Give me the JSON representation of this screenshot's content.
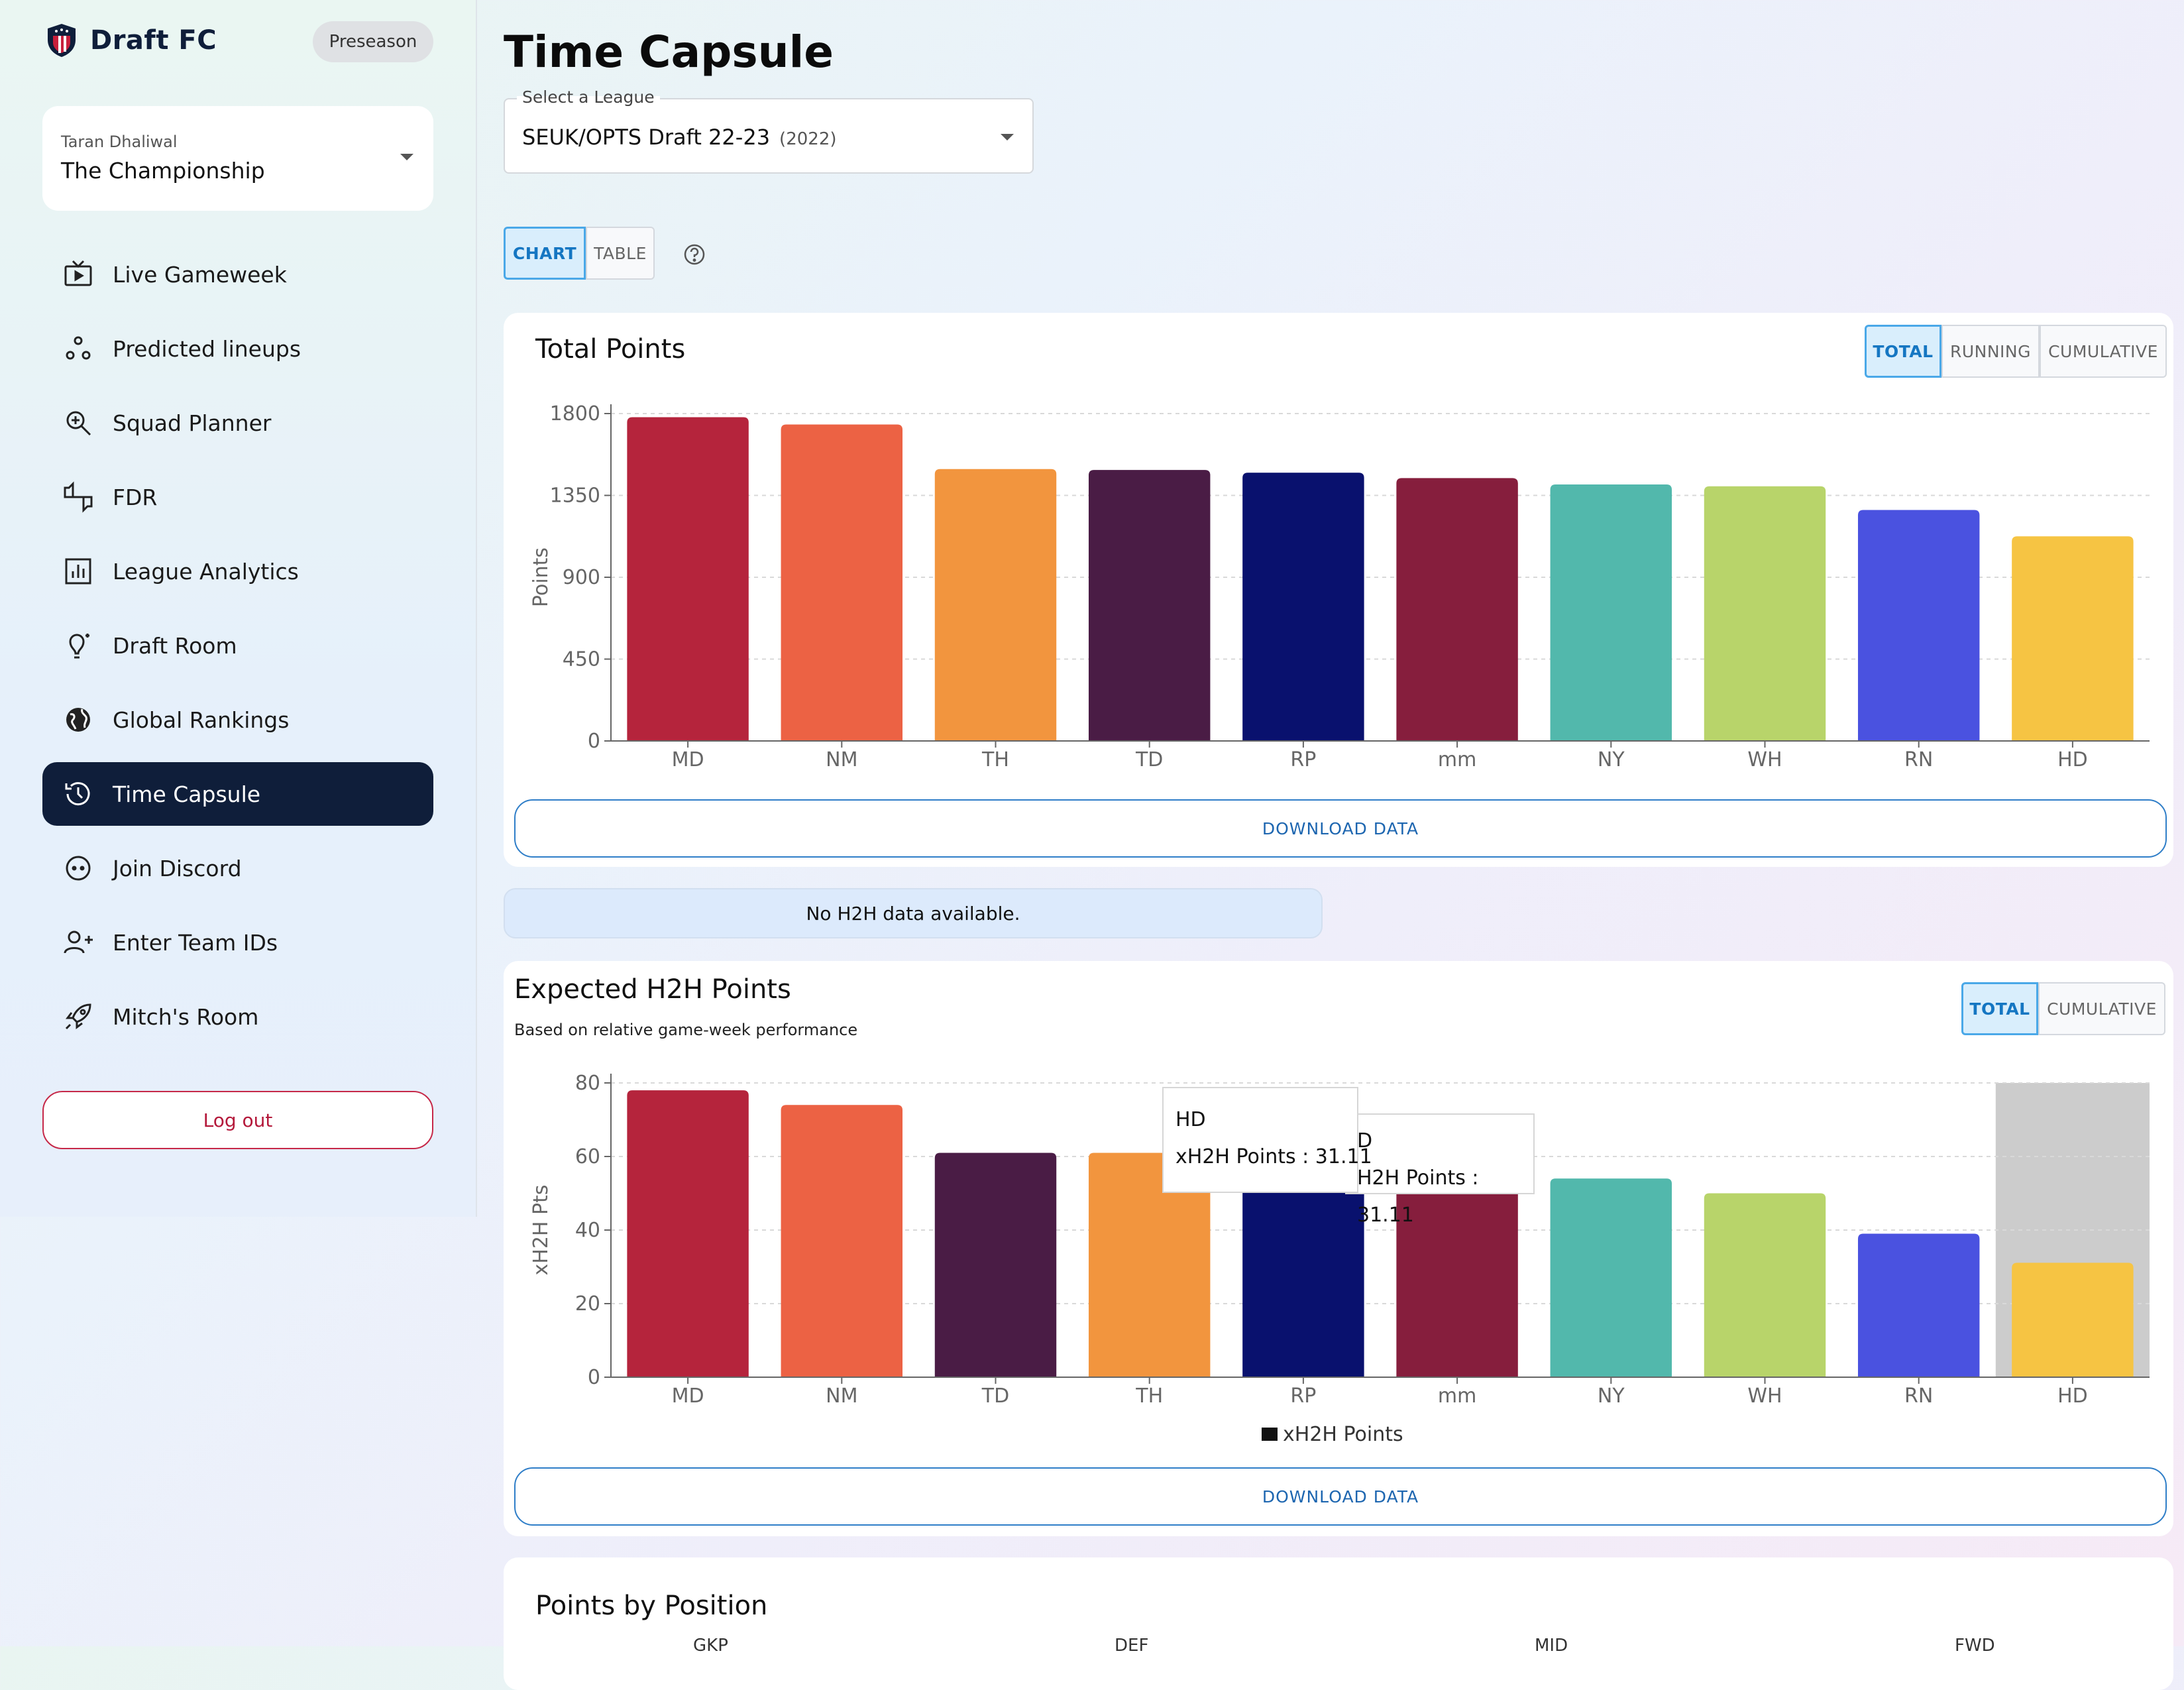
{
  "brand": {
    "name": "Draft FC",
    "season_badge": "Preseason"
  },
  "league_card": {
    "owner": "Taran Dhaliwal",
    "league_name": "The Championship"
  },
  "nav": {
    "items": [
      {
        "label": "Live Gameweek",
        "icon": "tv-play-icon"
      },
      {
        "label": "Predicted lineups",
        "icon": "lineup-icon"
      },
      {
        "label": "Squad Planner",
        "icon": "search-zoom-icon"
      },
      {
        "label": "FDR",
        "icon": "thumbs-icon"
      },
      {
        "label": "League Analytics",
        "icon": "bar-chart-icon"
      },
      {
        "label": "Draft Room",
        "icon": "lightbulb-icon"
      },
      {
        "label": "Global Rankings",
        "icon": "globe-icon"
      },
      {
        "label": "Time Capsule",
        "icon": "history-icon"
      },
      {
        "label": "Join Discord",
        "icon": "discord-icon"
      },
      {
        "label": "Enter Team IDs",
        "icon": "user-plus-icon"
      },
      {
        "label": "Mitch's Room",
        "icon": "rocket-icon"
      }
    ],
    "active": "Time Capsule",
    "logout_label": "Log out"
  },
  "page": {
    "title": "Time Capsule"
  },
  "league_select": {
    "label": "Select a League",
    "value": "SEUK/OPTS Draft 22-23",
    "year": "(2022)"
  },
  "view_toggle": {
    "chart": "CHART",
    "table": "TABLE",
    "selected": "CHART"
  },
  "total_points": {
    "title": "Total Points",
    "toggles": {
      "total": "TOTAL",
      "running": "RUNNING",
      "cumulative": "CUMULATIVE"
    },
    "download_label": "DOWNLOAD DATA"
  },
  "h2h_notice": "No H2H data available.",
  "expected_h2h": {
    "title": "Expected H2H Points",
    "subtitle": "Based on relative game-week performance",
    "toggles": {
      "total": "TOTAL",
      "cumulative": "CUMULATIVE"
    },
    "download_label": "DOWNLOAD DATA",
    "tooltip": {
      "team": "HD",
      "text": "xH2H Points : 31.11",
      "clipped_team": "D",
      "clipped_text": "H2H Points : 31.11"
    }
  },
  "points_by_position": {
    "title": "Points by Position",
    "columns": [
      "GKP",
      "DEF",
      "MID",
      "FWD"
    ]
  },
  "colors": {
    "MD": "#b5243c",
    "NM": "#ec6244",
    "TH": "#f2953e",
    "TD": "#4a1c45",
    "RP": "#09116e",
    "mm": "#861e3d",
    "NY": "#52b8ac",
    "WH": "#b8d46a",
    "RN": "#4a52e0",
    "HD": "#f6c443"
  },
  "chart_data": [
    {
      "type": "bar",
      "title": "Total Points",
      "xlabel": "",
      "ylabel": "Points",
      "ylim": [
        0,
        1800
      ],
      "yticks": [
        0,
        450,
        900,
        1350,
        1800
      ],
      "categories": [
        "MD",
        "NM",
        "TH",
        "TD",
        "RP",
        "mm",
        "NY",
        "WH",
        "RN",
        "HD"
      ],
      "values": [
        1780,
        1740,
        1495,
        1490,
        1475,
        1445,
        1410,
        1400,
        1270,
        1125
      ],
      "grid": true
    },
    {
      "type": "bar",
      "title": "Expected H2H Points",
      "xlabel": "",
      "ylabel": "xH2H Pts",
      "ylim": [
        0,
        80
      ],
      "yticks": [
        0,
        20,
        40,
        60,
        80
      ],
      "categories": [
        "MD",
        "NM",
        "TD",
        "TH",
        "RP",
        "mm",
        "NY",
        "WH",
        "RN",
        "HD"
      ],
      "values": [
        78,
        74,
        61,
        61,
        55,
        52,
        54,
        50,
        39,
        31.11
      ],
      "legend": "xH2H Points",
      "highlighted": "HD",
      "grid": true
    }
  ]
}
